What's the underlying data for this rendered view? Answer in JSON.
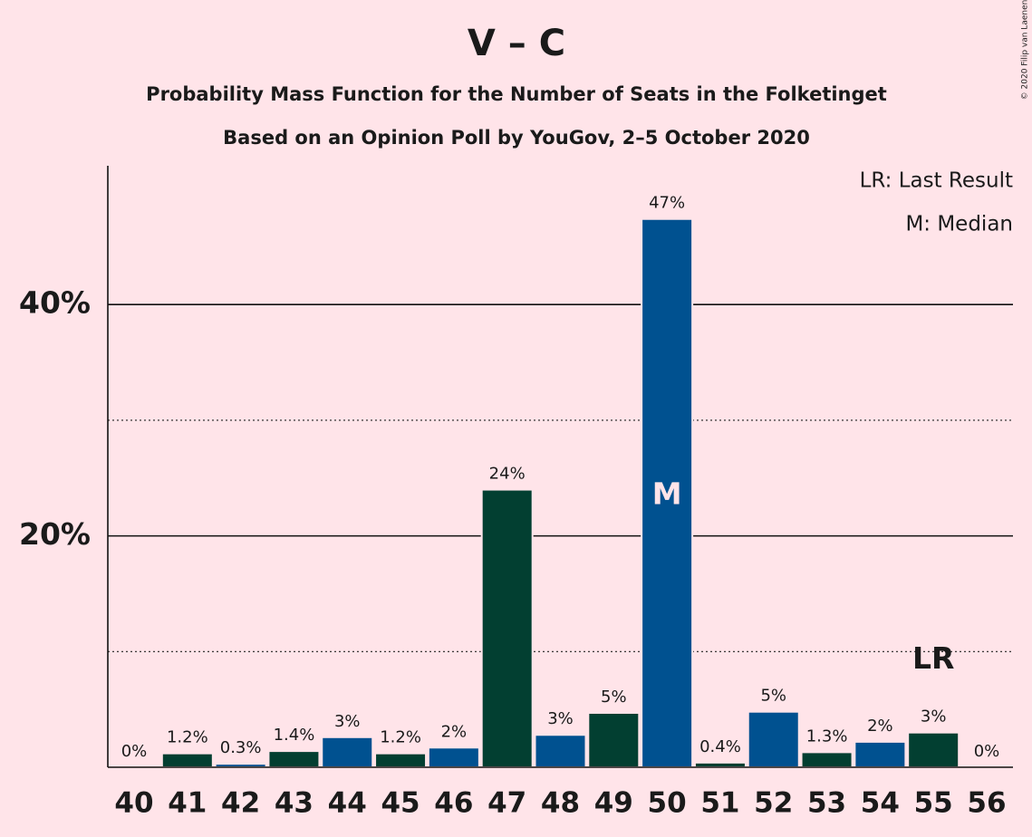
{
  "chart_data": {
    "type": "bar",
    "title": "V – C",
    "subtitle": "Probability Mass Function for the Number of Seats in the Folketinget",
    "subtitle2": "Based on an Opinion Poll by YouGov, 2–5 October 2020",
    "copyright": "© 2020 Filip van Laenen",
    "legend": [
      "LR: Last Result",
      "M: Median"
    ],
    "categories": [
      40,
      41,
      42,
      43,
      44,
      45,
      46,
      47,
      48,
      49,
      50,
      51,
      52,
      53,
      54,
      55,
      56
    ],
    "values": [
      0,
      1.2,
      0.3,
      1.4,
      2.6,
      1.2,
      1.7,
      24,
      2.8,
      4.7,
      47.4,
      0.4,
      4.8,
      1.3,
      2.2,
      3,
      0
    ],
    "value_labels": [
      "0%",
      "1.2%",
      "0.3%",
      "1.4%",
      "3%",
      "1.2%",
      "2%",
      "24%",
      "3%",
      "5%",
      "47%",
      "0.4%",
      "5%",
      "1.3%",
      "2%",
      "3%",
      "0%"
    ],
    "colors": [
      "#005190",
      "#023f31",
      "#005190",
      "#023f31",
      "#005190",
      "#023f31",
      "#005190",
      "#023f31",
      "#005190",
      "#023f31",
      "#005190",
      "#023f31",
      "#005190",
      "#023f31",
      "#005190",
      "#023f31",
      "#005190"
    ],
    "median": 50,
    "median_label": "M",
    "last_result": 55,
    "last_result_label": "LR",
    "ylim": [
      0,
      52
    ],
    "yticks": [
      {
        "value": 20,
        "label": "20%"
      },
      {
        "value": 40,
        "label": "40%"
      }
    ],
    "minor_yticks": [
      10,
      30
    ],
    "grid": true
  }
}
